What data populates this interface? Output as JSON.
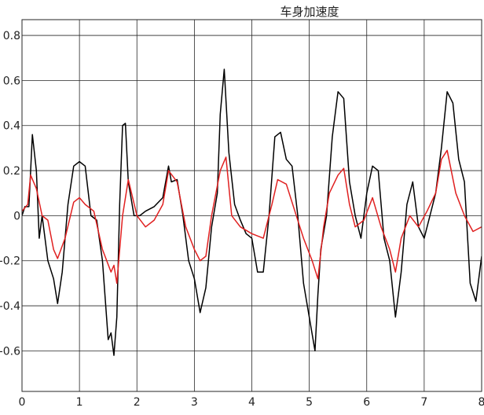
{
  "chart_data": {
    "type": "line",
    "title": "车身加速度",
    "xlabel": "",
    "ylabel": "",
    "xlim": [
      0,
      8
    ],
    "ylim": [
      -0.78,
      0.87
    ],
    "xticks": [
      0,
      1,
      2,
      3,
      4,
      5,
      6,
      7,
      8
    ],
    "xtick_labels": [
      "0",
      "1",
      "2",
      "3",
      "4",
      "5",
      "6",
      "7",
      "8"
    ],
    "yticks": [
      -0.6,
      -0.4,
      -0.2,
      0,
      0.2,
      0.4,
      0.6,
      0.8
    ],
    "ytick_labels": [
      "-0.6",
      "-0.4",
      "-0.2",
      "0",
      "0.2",
      "0.4",
      "0.6",
      "0.8"
    ],
    "grid": true,
    "colors": {
      "series_a": "#000000",
      "series_b": "#e02020",
      "grid": "#262626"
    },
    "series": [
      {
        "color": "#000000",
        "x": [
          0,
          0.05,
          0.12,
          0.18,
          0.25,
          0.3,
          0.35,
          0.45,
          0.55,
          0.62,
          0.7,
          0.8,
          0.9,
          1.0,
          1.1,
          1.2,
          1.3,
          1.4,
          1.5,
          1.55,
          1.6,
          1.65,
          1.7,
          1.75,
          1.8,
          1.85,
          1.95,
          2.05,
          2.15,
          2.3,
          2.45,
          2.55,
          2.6,
          2.7,
          2.8,
          2.9,
          3.0,
          3.1,
          3.2,
          3.3,
          3.4,
          3.45,
          3.52,
          3.6,
          3.7,
          3.8,
          3.9,
          4.0,
          4.1,
          4.2,
          4.3,
          4.4,
          4.5,
          4.6,
          4.7,
          4.8,
          4.9,
          5.0,
          5.1,
          5.15,
          5.2,
          5.3,
          5.4,
          5.5,
          5.6,
          5.7,
          5.8,
          5.9,
          6.0,
          6.1,
          6.2,
          6.3,
          6.4,
          6.5,
          6.55,
          6.6,
          6.7,
          6.8,
          6.9,
          7.0,
          7.1,
          7.2,
          7.3,
          7.4,
          7.5,
          7.6,
          7.7,
          7.8,
          7.9,
          8.0
        ],
        "values": [
          0,
          0.04,
          0.04,
          0.36,
          0.2,
          -0.1,
          0.0,
          -0.2,
          -0.28,
          -0.39,
          -0.25,
          0.05,
          0.22,
          0.24,
          0.22,
          0.0,
          -0.02,
          -0.2,
          -0.55,
          -0.52,
          -0.62,
          -0.45,
          0.05,
          0.4,
          0.41,
          0.15,
          0.0,
          0.0,
          0.02,
          0.04,
          0.08,
          0.22,
          0.15,
          0.16,
          0.0,
          -0.2,
          -0.28,
          -0.43,
          -0.32,
          -0.05,
          0.1,
          0.45,
          0.65,
          0.28,
          0.05,
          -0.02,
          -0.08,
          -0.1,
          -0.25,
          -0.25,
          0.0,
          0.35,
          0.37,
          0.25,
          0.22,
          0.0,
          -0.3,
          -0.45,
          -0.6,
          -0.35,
          -0.15,
          0.0,
          0.35,
          0.55,
          0.52,
          0.15,
          0.0,
          -0.1,
          0.1,
          0.22,
          0.2,
          -0.1,
          -0.2,
          -0.45,
          -0.35,
          -0.25,
          0.05,
          0.15,
          -0.05,
          -0.1,
          0.0,
          0.1,
          0.3,
          0.55,
          0.5,
          0.25,
          0.15,
          -0.3,
          -0.38,
          -0.18
        ]
      },
      {
        "color": "#e02020",
        "x": [
          0,
          0.1,
          0.15,
          0.25,
          0.35,
          0.45,
          0.55,
          0.62,
          0.75,
          0.9,
          1.0,
          1.1,
          1.25,
          1.4,
          1.55,
          1.6,
          1.65,
          1.75,
          1.85,
          2.0,
          2.15,
          2.3,
          2.45,
          2.55,
          2.7,
          2.85,
          3.0,
          3.1,
          3.2,
          3.3,
          3.45,
          3.55,
          3.65,
          3.8,
          4.0,
          4.2,
          4.35,
          4.45,
          4.6,
          4.75,
          4.9,
          5.05,
          5.15,
          5.25,
          5.35,
          5.5,
          5.6,
          5.7,
          5.8,
          5.95,
          6.1,
          6.25,
          6.4,
          6.5,
          6.6,
          6.75,
          6.9,
          7.05,
          7.2,
          7.3,
          7.4,
          7.55,
          7.7,
          7.85,
          8.0
        ],
        "values": [
          0.02,
          0.05,
          0.18,
          0.12,
          0.0,
          -0.02,
          -0.15,
          -0.19,
          -0.1,
          0.06,
          0.08,
          0.05,
          0.02,
          -0.15,
          -0.25,
          -0.22,
          -0.3,
          0.0,
          0.16,
          0.0,
          -0.05,
          -0.02,
          0.05,
          0.2,
          0.15,
          -0.05,
          -0.15,
          -0.2,
          -0.18,
          0.0,
          0.2,
          0.26,
          0.0,
          -0.05,
          -0.08,
          -0.1,
          0.05,
          0.16,
          0.14,
          0.02,
          -0.1,
          -0.2,
          -0.28,
          -0.05,
          0.1,
          0.18,
          0.21,
          0.05,
          -0.05,
          -0.02,
          0.08,
          -0.05,
          -0.15,
          -0.25,
          -0.1,
          0.0,
          -0.05,
          0.02,
          0.1,
          0.25,
          0.29,
          0.1,
          0.0,
          -0.07,
          -0.05
        ]
      }
    ]
  }
}
